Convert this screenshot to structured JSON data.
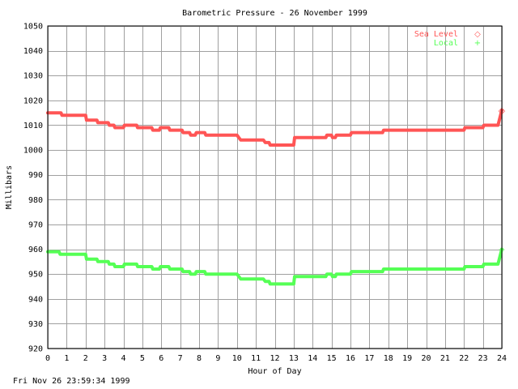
{
  "chart_data": {
    "type": "line",
    "title": "Barometric Pressure - 26 November 1999",
    "xlabel": "Hour of Day",
    "ylabel": "Millibars",
    "xlim": [
      0,
      24
    ],
    "ylim": [
      920,
      1050
    ],
    "x_ticks": [
      0,
      1,
      2,
      3,
      4,
      5,
      6,
      7,
      8,
      9,
      10,
      11,
      12,
      13,
      14,
      15,
      16,
      17,
      18,
      19,
      20,
      21,
      22,
      23,
      24
    ],
    "y_ticks": [
      920,
      930,
      940,
      950,
      960,
      970,
      980,
      990,
      1000,
      1010,
      1020,
      1030,
      1040,
      1050
    ],
    "grid": true,
    "legend_position": "top-right",
    "series": [
      {
        "name": "Sea Level",
        "marker": "◇",
        "color": "#ff5555",
        "points": [
          [
            0,
            1015
          ],
          [
            0.7,
            1015
          ],
          [
            0.75,
            1014
          ],
          [
            2.0,
            1014
          ],
          [
            2.05,
            1012
          ],
          [
            2.6,
            1012
          ],
          [
            2.65,
            1011
          ],
          [
            3.2,
            1011
          ],
          [
            3.25,
            1010
          ],
          [
            3.5,
            1010
          ],
          [
            3.55,
            1009
          ],
          [
            4.0,
            1009
          ],
          [
            4.05,
            1010
          ],
          [
            4.7,
            1010
          ],
          [
            4.75,
            1009
          ],
          [
            5.5,
            1009
          ],
          [
            5.55,
            1008
          ],
          [
            5.9,
            1008
          ],
          [
            5.95,
            1009
          ],
          [
            6.4,
            1009
          ],
          [
            6.45,
            1008
          ],
          [
            7.1,
            1008
          ],
          [
            7.15,
            1007
          ],
          [
            7.5,
            1007
          ],
          [
            7.55,
            1006
          ],
          [
            7.8,
            1006
          ],
          [
            7.85,
            1007
          ],
          [
            8.3,
            1007
          ],
          [
            8.35,
            1006
          ],
          [
            10.0,
            1006
          ],
          [
            10.1,
            1005
          ],
          [
            10.2,
            1004
          ],
          [
            11.4,
            1004
          ],
          [
            11.5,
            1003
          ],
          [
            11.7,
            1003
          ],
          [
            11.75,
            1002
          ],
          [
            13.0,
            1002
          ],
          [
            13.05,
            1005
          ],
          [
            14.7,
            1005
          ],
          [
            14.75,
            1006
          ],
          [
            15.0,
            1006
          ],
          [
            15.05,
            1005
          ],
          [
            15.2,
            1005
          ],
          [
            15.25,
            1006
          ],
          [
            16.0,
            1006
          ],
          [
            16.05,
            1007
          ],
          [
            17.7,
            1007
          ],
          [
            17.75,
            1008
          ],
          [
            22.0,
            1008
          ],
          [
            22.05,
            1009
          ],
          [
            23.0,
            1009
          ],
          [
            23.05,
            1010
          ],
          [
            23.8,
            1010
          ],
          [
            24,
            1016
          ]
        ]
      },
      {
        "name": "Local",
        "marker": "+",
        "color": "#55ff55",
        "points": [
          [
            0,
            959
          ],
          [
            0.6,
            959
          ],
          [
            0.65,
            958
          ],
          [
            2.0,
            958
          ],
          [
            2.05,
            956
          ],
          [
            2.6,
            956
          ],
          [
            2.65,
            955
          ],
          [
            3.2,
            955
          ],
          [
            3.25,
            954
          ],
          [
            3.5,
            954
          ],
          [
            3.55,
            953
          ],
          [
            4.0,
            953
          ],
          [
            4.05,
            954
          ],
          [
            4.7,
            954
          ],
          [
            4.75,
            953
          ],
          [
            5.5,
            953
          ],
          [
            5.55,
            952
          ],
          [
            5.9,
            952
          ],
          [
            5.95,
            953
          ],
          [
            6.4,
            953
          ],
          [
            6.45,
            952
          ],
          [
            7.1,
            952
          ],
          [
            7.15,
            951
          ],
          [
            7.5,
            951
          ],
          [
            7.55,
            950
          ],
          [
            7.8,
            950
          ],
          [
            7.85,
            951
          ],
          [
            8.3,
            951
          ],
          [
            8.35,
            950
          ],
          [
            10.0,
            950
          ],
          [
            10.1,
            949
          ],
          [
            10.2,
            948
          ],
          [
            11.4,
            948
          ],
          [
            11.5,
            947
          ],
          [
            11.7,
            947
          ],
          [
            11.75,
            946
          ],
          [
            13.0,
            946
          ],
          [
            13.05,
            949
          ],
          [
            14.7,
            949
          ],
          [
            14.75,
            950
          ],
          [
            15.0,
            950
          ],
          [
            15.05,
            949
          ],
          [
            15.2,
            949
          ],
          [
            15.25,
            950
          ],
          [
            16.0,
            950
          ],
          [
            16.05,
            951
          ],
          [
            17.7,
            951
          ],
          [
            17.75,
            952
          ],
          [
            22.0,
            952
          ],
          [
            22.05,
            953
          ],
          [
            23.0,
            953
          ],
          [
            23.05,
            954
          ],
          [
            23.8,
            954
          ],
          [
            24,
            960
          ]
        ]
      }
    ]
  },
  "footer": {
    "timestamp": "Fri Nov 26 23:59:34 1999"
  }
}
